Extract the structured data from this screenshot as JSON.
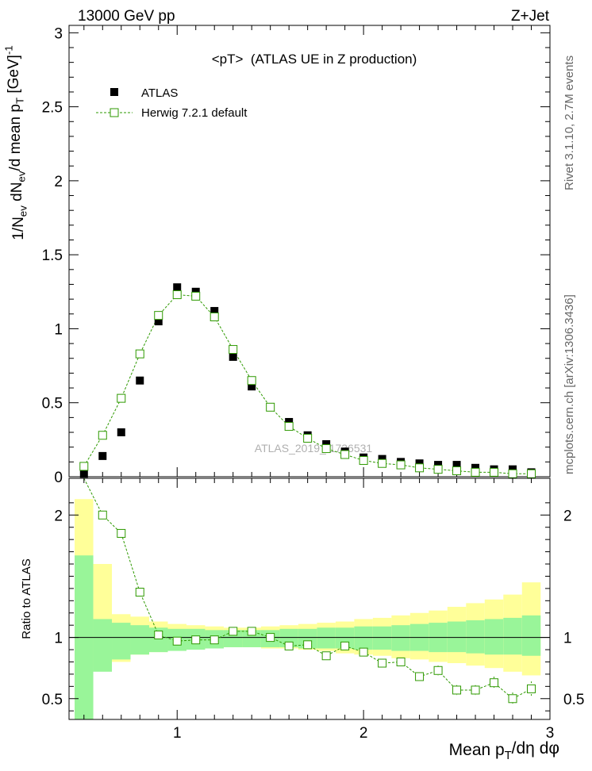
{
  "header": {
    "left": "13000 GeV pp",
    "right": "Z+Jet"
  },
  "side_labels": {
    "rivet": "Rivet 3.1.10,  2.7M events",
    "mcplots": "mcplots.cern.ch [arXiv:1306.3436]"
  },
  "main_panel": {
    "title": "<pT>  (ATLAS UE in Z production)",
    "ylabel": "1/N_ev dN_ev/d mean p_T [GeV]^-1",
    "watermark": "ATLAS_2019_I1736531",
    "legend": {
      "data_label": "ATLAS",
      "mc_label": "Herwig 7.2.1 default",
      "position": "top-left"
    }
  },
  "ratio_panel": {
    "ylabel": "Ratio to ATLAS"
  },
  "xlabel": "Mean p_T/dη dφ",
  "colors": {
    "data": "#000000",
    "mc": "#2e9900",
    "band_inner": "#99f599",
    "band_outer": "#ffff99"
  },
  "chart_data": [
    {
      "type": "scatter",
      "panel": "main",
      "xlim": [
        0.42,
        3.0
      ],
      "ylim": [
        0,
        3.05
      ],
      "x_ticks": [
        1,
        2,
        3
      ],
      "y_ticks": [
        "0",
        "0.5",
        "1",
        "1.5",
        "2",
        "2.5",
        "3"
      ],
      "x": [
        0.5,
        0.6,
        0.7,
        0.8,
        0.9,
        1.0,
        1.1,
        1.2,
        1.3,
        1.4,
        1.5,
        1.6,
        1.7,
        1.8,
        1.9,
        2.0,
        2.1,
        2.2,
        2.3,
        2.4,
        2.5,
        2.6,
        2.7,
        2.8,
        2.9
      ],
      "series": [
        {
          "name": "ATLAS",
          "marker": "filled-square",
          "values": [
            0.02,
            0.14,
            0.3,
            0.65,
            1.05,
            1.28,
            1.25,
            1.12,
            0.81,
            0.61,
            0.47,
            0.37,
            0.28,
            0.22,
            0.17,
            0.13,
            0.12,
            0.1,
            0.09,
            0.08,
            0.08,
            0.06,
            0.05,
            0.05,
            0.03
          ]
        },
        {
          "name": "Herwig 7.2.1 default",
          "marker": "open-square",
          "line": "dashed",
          "values": [
            0.07,
            0.28,
            0.53,
            0.83,
            1.09,
            1.23,
            1.22,
            1.08,
            0.86,
            0.65,
            0.47,
            0.34,
            0.26,
            0.19,
            0.15,
            0.11,
            0.09,
            0.08,
            0.06,
            0.05,
            0.04,
            0.03,
            0.03,
            0.02,
            0.02
          ]
        }
      ]
    },
    {
      "type": "line",
      "panel": "ratio",
      "xlim": [
        0.42,
        3.0
      ],
      "ylim": [
        0.33,
        2.3
      ],
      "x_ticks": [
        1,
        2,
        3
      ],
      "y_ticks": [
        "0.5",
        "1",
        "2"
      ],
      "reference_line": 1,
      "bins": [
        [
          0.45,
          0.55
        ],
        [
          0.55,
          0.65
        ],
        [
          0.65,
          0.75
        ],
        [
          0.75,
          0.85
        ],
        [
          0.85,
          0.95
        ],
        [
          0.95,
          1.05
        ],
        [
          1.05,
          1.15
        ],
        [
          1.15,
          1.25
        ],
        [
          1.25,
          1.35
        ],
        [
          1.35,
          1.45
        ],
        [
          1.45,
          1.55
        ],
        [
          1.55,
          1.65
        ],
        [
          1.65,
          1.75
        ],
        [
          1.75,
          1.85
        ],
        [
          1.85,
          1.95
        ],
        [
          1.95,
          2.05
        ],
        [
          2.05,
          2.15
        ],
        [
          2.15,
          2.25
        ],
        [
          2.25,
          2.35
        ],
        [
          2.35,
          2.45
        ],
        [
          2.45,
          2.55
        ],
        [
          2.55,
          2.65
        ],
        [
          2.65,
          2.75
        ],
        [
          2.75,
          2.85
        ],
        [
          2.85,
          2.95
        ]
      ],
      "band_inner": [
        [
          0.33,
          1.67
        ],
        [
          0.72,
          1.15
        ],
        [
          0.82,
          1.12
        ],
        [
          0.86,
          1.1
        ],
        [
          0.88,
          1.08
        ],
        [
          0.89,
          1.07
        ],
        [
          0.9,
          1.07
        ],
        [
          0.91,
          1.06
        ],
        [
          0.92,
          1.06
        ],
        [
          0.92,
          1.06
        ],
        [
          0.92,
          1.06
        ],
        [
          0.92,
          1.07
        ],
        [
          0.91,
          1.07
        ],
        [
          0.91,
          1.08
        ],
        [
          0.91,
          1.08
        ],
        [
          0.9,
          1.09
        ],
        [
          0.9,
          1.09
        ],
        [
          0.89,
          1.1
        ],
        [
          0.89,
          1.11
        ],
        [
          0.88,
          1.12
        ],
        [
          0.88,
          1.13
        ],
        [
          0.87,
          1.14
        ],
        [
          0.86,
          1.15
        ],
        [
          0.86,
          1.16
        ],
        [
          0.85,
          1.18
        ]
      ],
      "band_outer": [
        [
          0.33,
          2.13
        ],
        [
          0.76,
          1.6
        ],
        [
          0.8,
          1.19
        ],
        [
          0.86,
          1.17
        ],
        [
          0.88,
          1.13
        ],
        [
          0.9,
          1.11
        ],
        [
          0.91,
          1.1
        ],
        [
          0.91,
          1.09
        ],
        [
          0.92,
          1.08
        ],
        [
          0.92,
          1.08
        ],
        [
          0.91,
          1.09
        ],
        [
          0.91,
          1.1
        ],
        [
          0.9,
          1.11
        ],
        [
          0.89,
          1.12
        ],
        [
          0.87,
          1.13
        ],
        [
          0.86,
          1.15
        ],
        [
          0.85,
          1.16
        ],
        [
          0.83,
          1.18
        ],
        [
          0.82,
          1.2
        ],
        [
          0.8,
          1.22
        ],
        [
          0.79,
          1.25
        ],
        [
          0.77,
          1.28
        ],
        [
          0.75,
          1.31
        ],
        [
          0.72,
          1.35
        ],
        [
          0.69,
          1.45
        ]
      ],
      "series": [
        {
          "name": "Herwig 7.2.1 default",
          "x": [
            0.6,
            0.7,
            0.8,
            0.9,
            1.0,
            1.1,
            1.2,
            1.3,
            1.4,
            1.5,
            1.6,
            1.7,
            1.8,
            1.9,
            2.0,
            2.1,
            2.2,
            2.3,
            2.4,
            2.5,
            2.6,
            2.7,
            2.8,
            2.9
          ],
          "values": [
            2.0,
            1.85,
            1.37,
            1.02,
            0.97,
            0.98,
            0.98,
            1.05,
            1.05,
            1.0,
            0.93,
            0.94,
            0.85,
            0.93,
            0.88,
            0.79,
            0.8,
            0.68,
            0.73,
            0.57,
            0.57,
            0.63,
            0.5,
            0.58
          ],
          "errors": [
            0.02,
            0.02,
            0.02,
            0.02,
            0.01,
            0.01,
            0.01,
            0.01,
            0.01,
            0.01,
            0.01,
            0.02,
            0.02,
            0.03,
            0.03,
            0.03,
            0.03,
            0.03,
            0.04,
            0.04,
            0.04,
            0.05,
            0.05,
            0.06
          ],
          "clipped_above": {
            "x": 0.5
          }
        }
      ]
    }
  ]
}
